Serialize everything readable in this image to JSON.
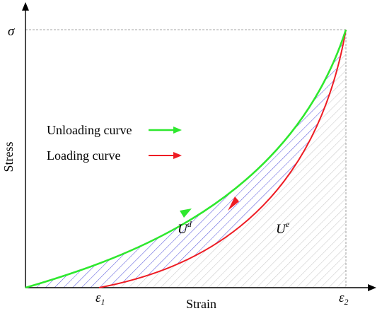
{
  "labels": {
    "y_axis": "Stress",
    "x_axis": "Strain",
    "sigma": "σ",
    "eps1": "ε",
    "eps1_sub": "1",
    "eps2": "ε",
    "eps2_sub": "2",
    "ud_base": "U",
    "ud_sup": "d",
    "ue_base": "U",
    "ue_sup": "e"
  },
  "legend": {
    "unloading": "Unloading curve",
    "loading": "Loading curve"
  },
  "colors": {
    "unloading": "#2ee82e",
    "loading": "#ee1c24",
    "ud_hatch": "#3b3bd6",
    "ue_hatch": "#bdbdbd",
    "axis": "#000000"
  }
}
